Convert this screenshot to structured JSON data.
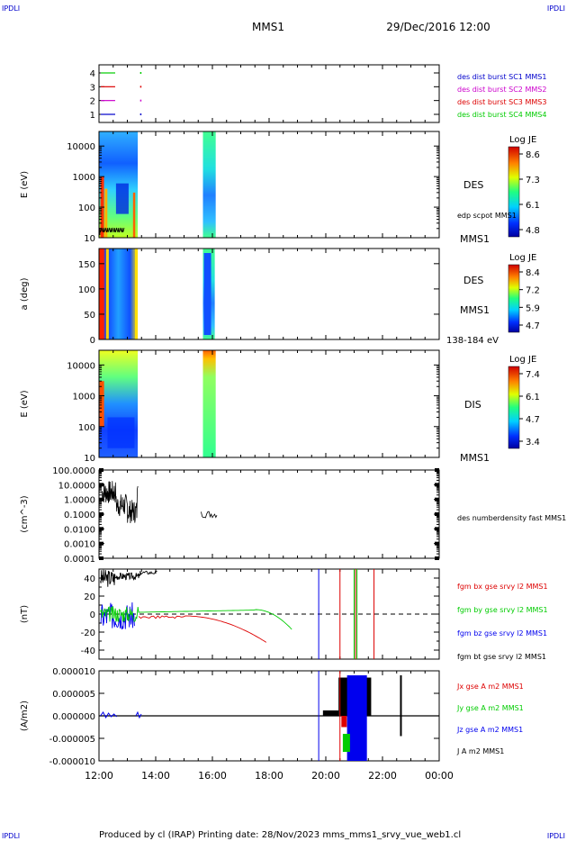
{
  "header": {
    "ipdl_left": "IPDLI",
    "ipdl_right": "IPDLI",
    "spacecraft": "MMS1",
    "date": "29/Dec/2016 12:00"
  },
  "footer": {
    "text": "Produced by cl (IRAP)   Printing date: 28/Nov/2023   mms_mms1_srvy_vue_web1.cl",
    "ipdl_left": "IPDLI",
    "ipdl_right": "IPDLI"
  },
  "chart_data": [
    {
      "type": "line",
      "panel": "availability",
      "yticks": [
        "4",
        "3",
        "2",
        "1"
      ],
      "series": [
        {
          "name": "des dist burst SC1 MMS1",
          "color": "#0000cc",
          "row": 1
        },
        {
          "name": "des dist burst SC2 MMS2",
          "color": "#cc00cc",
          "row": 2
        },
        {
          "name": "des dist burst SC3 MMS3",
          "color": "#dd0000",
          "row": 3
        },
        {
          "name": "des dist burst SC4 MMS4",
          "color": "#00cc00",
          "row": 4
        }
      ]
    },
    {
      "type": "heatmap",
      "panel": "des-energy",
      "ylabel": "E (eV)",
      "yscale": "log",
      "ylim": [
        10,
        30000
      ],
      "yticks": [
        "10000",
        "1000",
        "100",
        "10"
      ],
      "instrument": "DES",
      "extra_label": "edp scpot MMS1",
      "sc_label": "MMS1",
      "colorbar": {
        "title": "Log JE",
        "ticks": [
          "8.6",
          "7.3",
          "6.1",
          "4.8"
        ]
      },
      "intervals": [
        [
          "12:00",
          "13:22"
        ],
        [
          "15:40",
          "16:07"
        ]
      ]
    },
    {
      "type": "heatmap",
      "panel": "des-pitch",
      "ylabel": "a (deg)",
      "ylim": [
        0,
        180
      ],
      "yticks": [
        "150",
        "100",
        "50",
        "0"
      ],
      "instrument": "DES",
      "sc_label": "MMS1",
      "energy_range": "138-184 eV",
      "colorbar": {
        "title": "Log JE",
        "ticks": [
          "8.4",
          "7.2",
          "5.9",
          "4.7"
        ]
      },
      "intervals": [
        [
          "12:00",
          "13:22"
        ],
        [
          "15:40",
          "16:05"
        ]
      ]
    },
    {
      "type": "heatmap",
      "panel": "dis-energy",
      "ylabel": "E (eV)",
      "yscale": "log",
      "ylim": [
        10,
        30000
      ],
      "yticks": [
        "10000",
        "1000",
        "100",
        "10"
      ],
      "instrument": "DIS",
      "sc_label": "MMS1",
      "colorbar": {
        "title": "Log JE",
        "ticks": [
          "7.4",
          "6.1",
          "4.7",
          "3.4"
        ]
      },
      "intervals": [
        [
          "12:00",
          "13:22"
        ],
        [
          "15:40",
          "16:07"
        ]
      ]
    },
    {
      "type": "line",
      "panel": "density",
      "ylabel": "(cm^-3)",
      "yscale": "log",
      "ylim": [
        0.0001,
        100
      ],
      "yticks": [
        "100.0000",
        "10.0000",
        "1.0000",
        "0.1000",
        "0.0100",
        "0.0010",
        "0.0001"
      ],
      "series": [
        {
          "name": "des numberdensity fast MMS1",
          "color": "#000000"
        }
      ]
    },
    {
      "type": "line",
      "panel": "magnetic-field",
      "ylabel": "(nT)",
      "ylim": [
        -50,
        50
      ],
      "yticks": [
        "40",
        "20",
        "0",
        "-20",
        "-40"
      ],
      "series": [
        {
          "name": "fgm bx gse srvy l2 MMS1",
          "color": "#dd0000"
        },
        {
          "name": "fgm by gse srvy l2 MMS1",
          "color": "#00cc00"
        },
        {
          "name": "fgm bz gse srvy l2 MMS1",
          "color": "#0000ee"
        },
        {
          "name": "fgm bt gse srvy l2 MMS1",
          "color": "#000000"
        }
      ]
    },
    {
      "type": "line",
      "panel": "current-density",
      "ylabel": "(A/m2)",
      "ylim": [
        -1e-05,
        1e-05
      ],
      "yticks": [
        "0.000010",
        "0.000005",
        "0.000000",
        "-0.000005",
        "-0.000010"
      ],
      "series": [
        {
          "name": "Jx gse A m2 MMS1",
          "color": "#dd0000"
        },
        {
          "name": "Jy gse A m2 MMS1",
          "color": "#00cc00"
        },
        {
          "name": "Jz gse A m2 MMS1",
          "color": "#0000ee"
        },
        {
          "name": "J A m2 MMS1",
          "color": "#000000"
        }
      ]
    }
  ],
  "time_axis": {
    "ticks": [
      "12:00",
      "14:00",
      "16:00",
      "18:00",
      "20:00",
      "22:00",
      "00:00"
    ]
  }
}
